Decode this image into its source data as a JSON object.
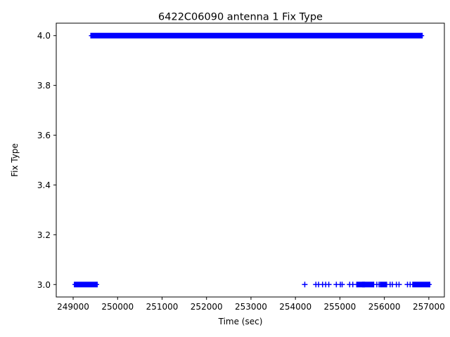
{
  "chart_data": {
    "type": "scatter",
    "title": "6422C06090 antenna 1 Fix Type",
    "xlabel": "Time (sec)",
    "ylabel": "Fix Type",
    "xlim": [
      248620,
      257350
    ],
    "ylim": [
      2.95,
      4.05
    ],
    "xticks": [
      249000,
      250000,
      251000,
      252000,
      253000,
      254000,
      255000,
      256000,
      257000
    ],
    "yticks": [
      3.0,
      3.2,
      3.4,
      3.6,
      3.8,
      4.0
    ],
    "xtick_labels": [
      "249000",
      "250000",
      "251000",
      "252000",
      "253000",
      "254000",
      "255000",
      "256000",
      "257000"
    ],
    "ytick_labels": [
      "3.0",
      "3.2",
      "3.4",
      "3.6",
      "3.8",
      "4.0"
    ],
    "marker": "+",
    "marker_color": "#0000ff",
    "grid": false,
    "series": [
      {
        "fix4_segments": [
          [
            249450,
            256800
          ]
        ],
        "fix3_segments": [
          [
            249080,
            249490
          ],
          [
            255430,
            255500
          ],
          [
            255560,
            255700
          ],
          [
            255960,
            256000
          ],
          [
            256690,
            256970
          ]
        ],
        "fix3_points": [
          254210,
          254460,
          254520,
          254610,
          254680,
          254750,
          254920,
          255010,
          255050,
          255220,
          255290,
          255760,
          255830,
          255880,
          256130,
          256180,
          256270,
          256330,
          256520,
          256580
        ]
      }
    ]
  }
}
